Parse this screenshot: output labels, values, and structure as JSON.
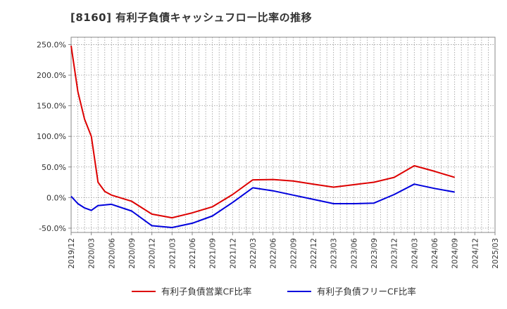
{
  "chart_data": {
    "type": "line",
    "title": "[8160]  有利子負債キャッシュフロー比率の推移",
    "xlabel": "",
    "ylabel": "",
    "x_ticks": [
      "2019/12",
      "2020/03",
      "2020/06",
      "2020/09",
      "2020/12",
      "2021/03",
      "2021/06",
      "2021/09",
      "2021/12",
      "2022/03",
      "2022/06",
      "2022/09",
      "2022/12",
      "2023/03",
      "2023/06",
      "2023/09",
      "2023/12",
      "2024/03",
      "2024/06",
      "2024/09",
      "2024/12",
      "2025/03"
    ],
    "y_ticks": [
      "250.0%",
      "200.0%",
      "150.0%",
      "100.0%",
      "50.0%",
      "0.0%",
      "-50.0%"
    ],
    "y_tick_values": [
      250,
      200,
      150,
      100,
      50,
      0,
      -50
    ],
    "ylim": [
      -57,
      262
    ],
    "grid": true,
    "legend_position": "bottom",
    "series": [
      {
        "name": "有利子負債営業CF比率",
        "color": "#dd0000",
        "points": [
          [
            "2019/12",
            248
          ],
          [
            "2020/01",
            173
          ],
          [
            "2020/02",
            128
          ],
          [
            "2020/03",
            100
          ],
          [
            "2020/04",
            25
          ],
          [
            "2020/05",
            10
          ],
          [
            "2020/06",
            4
          ],
          [
            "2020/09",
            -6
          ],
          [
            "2020/12",
            -27
          ],
          [
            "2021/03",
            -33
          ],
          [
            "2021/06",
            -25
          ],
          [
            "2021/09",
            -15
          ],
          [
            "2021/12",
            5
          ],
          [
            "2022/03",
            29
          ],
          [
            "2022/06",
            29.5
          ],
          [
            "2022/09",
            27
          ],
          [
            "2022/12",
            22
          ],
          [
            "2023/03",
            17
          ],
          [
            "2023/06",
            21
          ],
          [
            "2023/09",
            25
          ],
          [
            "2023/12",
            33
          ],
          [
            "2024/03",
            52
          ],
          [
            "2024/06",
            43
          ],
          [
            "2024/09",
            33
          ]
        ]
      },
      {
        "name": "有利子負債フリーCF比率",
        "color": "#0000dd",
        "points": [
          [
            "2019/12",
            2
          ],
          [
            "2020/01",
            -10
          ],
          [
            "2020/02",
            -17
          ],
          [
            "2020/03",
            -21
          ],
          [
            "2020/04",
            -13
          ],
          [
            "2020/06",
            -11
          ],
          [
            "2020/09",
            -22
          ],
          [
            "2020/12",
            -46
          ],
          [
            "2021/03",
            -49
          ],
          [
            "2021/06",
            -42
          ],
          [
            "2021/09",
            -30
          ],
          [
            "2021/12",
            -8
          ],
          [
            "2022/03",
            16
          ],
          [
            "2022/06",
            11
          ],
          [
            "2022/09",
            4
          ],
          [
            "2022/12",
            -3
          ],
          [
            "2023/03",
            -10
          ],
          [
            "2023/06",
            -10
          ],
          [
            "2023/09",
            -9
          ],
          [
            "2023/12",
            5
          ],
          [
            "2024/03",
            22
          ],
          [
            "2024/06",
            15
          ],
          [
            "2024/09",
            9
          ]
        ]
      }
    ]
  }
}
